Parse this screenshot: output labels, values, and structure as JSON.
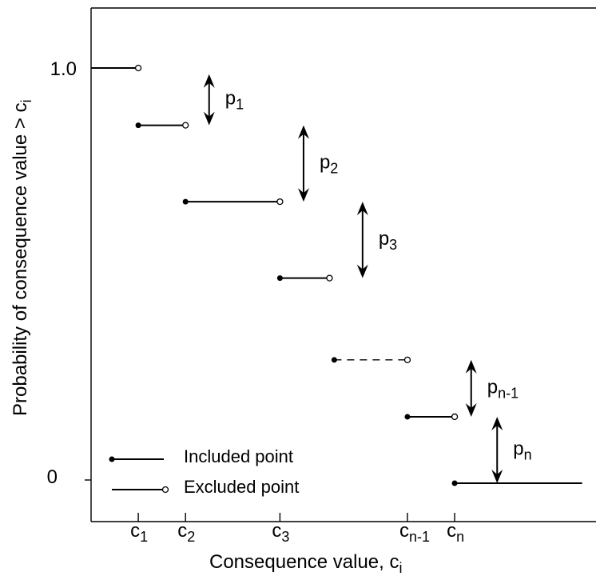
{
  "chart_data": {
    "type": "line",
    "title": "",
    "xlabel": "Consequence value, c",
    "xlabel_sub": "i",
    "ylabel": "Probability of consequence value > c",
    "ylabel_sub": "i",
    "y_ticks": [
      "1.0",
      "0"
    ],
    "ylim": [
      0,
      1.0
    ],
    "grid": false,
    "x_ticks": [
      {
        "main": "c",
        "sub": "1"
      },
      {
        "main": "c",
        "sub": "2"
      },
      {
        "main": "c",
        "sub": "3"
      },
      {
        "main": "c",
        "sub": "n-1"
      },
      {
        "main": "c",
        "sub": "n"
      }
    ],
    "steps": [
      {
        "x_from": 0,
        "x_to": 1,
        "y": 1.0,
        "included": false,
        "excluded": true,
        "dashed": false
      },
      {
        "x_from": 1,
        "x_to": 2,
        "y": 0.862,
        "included": true,
        "excluded": true,
        "dashed": false
      },
      {
        "x_from": 2,
        "x_to": 4,
        "y": 0.678,
        "included": true,
        "excluded": true,
        "dashed": false
      },
      {
        "x_from": 4,
        "x_to": 5.05,
        "y": 0.494,
        "included": true,
        "excluded": true,
        "dashed": false
      },
      {
        "x_from": 5.15,
        "x_to": 6.7,
        "y": 0.297,
        "included": true,
        "excluded": true,
        "dashed": true
      },
      {
        "x_from": 6.7,
        "x_to": 7.7,
        "y": 0.16,
        "included": true,
        "excluded": true,
        "dashed": false
      },
      {
        "x_from": 7.7,
        "x_to": 10.4,
        "y": 0.0,
        "included": true,
        "excluded": false,
        "dashed": false
      }
    ],
    "arrows": [
      {
        "label": "p",
        "sub": "1",
        "x": 2.5,
        "y_top": 0.985,
        "y_bottom": 0.862
      },
      {
        "label": "p",
        "sub": "2",
        "x": 4.5,
        "y_top": 0.862,
        "y_bottom": 0.678
      },
      {
        "label": "p",
        "sub": "3",
        "x": 5.75,
        "y_top": 0.678,
        "y_bottom": 0.494
      },
      {
        "label": "p",
        "sub": "n-1",
        "x": 8.05,
        "y_top": 0.297,
        "y_bottom": 0.16
      },
      {
        "label": "p",
        "sub": "n",
        "x": 8.6,
        "y_top": 0.16,
        "y_bottom": 0.0
      }
    ],
    "legend": {
      "position": "bottom-left",
      "entries": [
        {
          "label": "Included point",
          "marker": "included"
        },
        {
          "label": "Excluded point",
          "marker": "excluded"
        }
      ]
    }
  }
}
